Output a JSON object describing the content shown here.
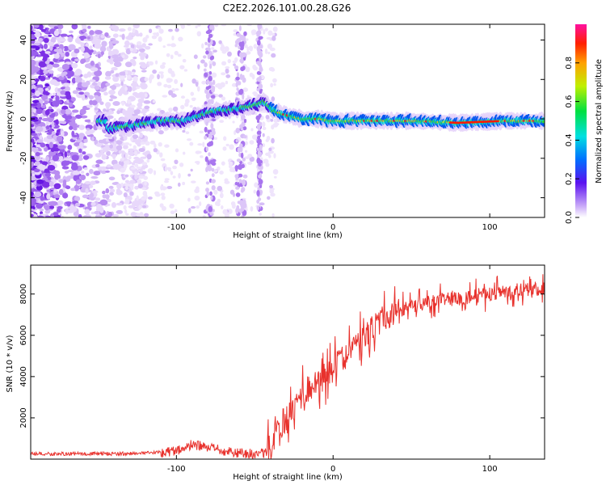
{
  "chart_data": [
    {
      "type": "heatmap",
      "title": "C2E2.2026.101.00.28.G26",
      "xlabel": "Height of straight line (km)",
      "ylabel": "Frequency (Hz)",
      "xlim": [
        -193,
        135
      ],
      "ylim": [
        -50,
        48
      ],
      "xticks": [
        -100,
        0,
        100
      ],
      "yticks": [
        -40,
        -20,
        0,
        20,
        40
      ],
      "colorbar": {
        "label": "Normalized spectral amplitude",
        "range": [
          0,
          1
        ],
        "ticks": [
          "0.0",
          "0.2",
          "0.4",
          "0.6",
          "0.8"
        ]
      },
      "ridge": [
        {
          "x": -145,
          "y": -5
        },
        {
          "x": -125,
          "y": -3
        },
        {
          "x": -110,
          "y": -1
        },
        {
          "x": -95,
          "y": -1
        },
        {
          "x": -85,
          "y": 2
        },
        {
          "x": -75,
          "y": 4
        },
        {
          "x": -62,
          "y": 5
        },
        {
          "x": -50,
          "y": 7
        },
        {
          "x": -44,
          "y": 9
        },
        {
          "x": -38,
          "y": 4
        },
        {
          "x": -30,
          "y": 2
        },
        {
          "x": -20,
          "y": 0
        },
        {
          "x": -10,
          "y": 0
        },
        {
          "x": 0,
          "y": -1
        },
        {
          "x": 20,
          "y": -1
        },
        {
          "x": 50,
          "y": -1
        },
        {
          "x": 80,
          "y": -2
        },
        {
          "x": 110,
          "y": -1
        },
        {
          "x": 135,
          "y": -1
        }
      ]
    },
    {
      "type": "line",
      "title": "",
      "xlabel": "Height of straight line (km)",
      "ylabel": "SNR (10 * v/v)",
      "xlim": [
        -193,
        135
      ],
      "ylim": [
        0,
        9400
      ],
      "xticks": [
        -100,
        0,
        100
      ],
      "yticks": [
        2000,
        4000,
        6000,
        8000
      ],
      "color": "#e8312c",
      "series": [
        {
          "name": "SNR",
          "x": [
            -193,
            -150,
            -120,
            -100,
            -90,
            -80,
            -70,
            -60,
            -50,
            -42,
            -35,
            -25,
            -15,
            -5,
            5,
            15,
            25,
            40,
            60,
            80,
            100,
            120,
            135
          ],
          "values": [
            250,
            260,
            280,
            400,
            700,
            550,
            400,
            300,
            250,
            300,
            1500,
            2500,
            3500,
            4000,
            4800,
            5500,
            6300,
            7200,
            7600,
            7800,
            8000,
            8200,
            8300
          ]
        }
      ]
    }
  ]
}
